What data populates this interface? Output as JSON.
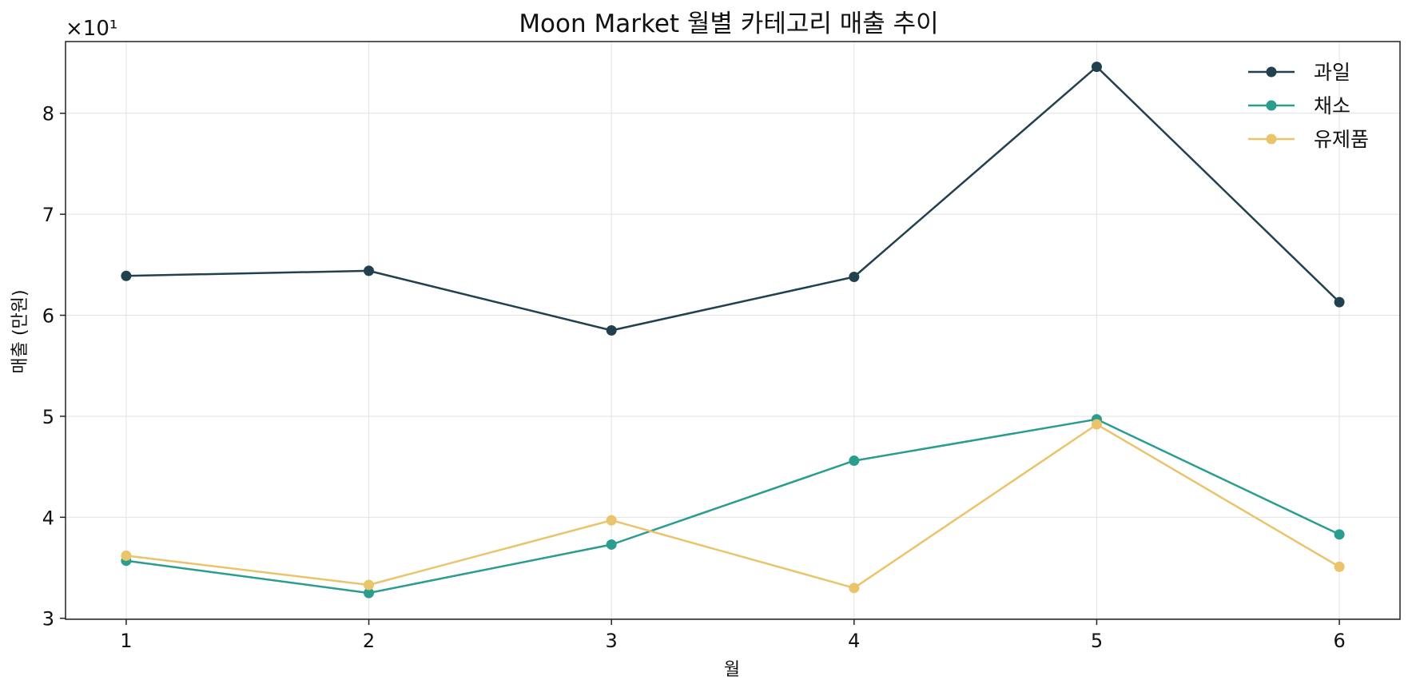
{
  "chart_data": {
    "type": "line",
    "title": "Moon Market 월별 카테고리 매출 추이",
    "xlabel": "월",
    "ylabel": "매출 (만원)",
    "x": [
      1,
      2,
      3,
      4,
      5,
      6
    ],
    "x_tick_labels": [
      "1",
      "2",
      "3",
      "4",
      "5",
      "6"
    ],
    "y_tick_labels": [
      "3",
      "4",
      "5",
      "6",
      "7",
      "8"
    ],
    "y_offset_label": "×10¹",
    "xlim": [
      0.75,
      6.25
    ],
    "ylim": [
      29.9,
      87.1
    ],
    "grid": true,
    "legend_position": "top-right",
    "series": [
      {
        "name": "과일",
        "color": "#22414f",
        "values": [
          63.9,
          64.4,
          58.5,
          63.8,
          84.6,
          61.3
        ]
      },
      {
        "name": "채소",
        "color": "#2a9d8f",
        "values": [
          35.7,
          32.5,
          37.3,
          45.6,
          49.7,
          38.3
        ]
      },
      {
        "name": "유제품",
        "color": "#e9c46a",
        "values": [
          36.2,
          33.3,
          39.7,
          33.0,
          49.2,
          35.1
        ]
      }
    ]
  }
}
